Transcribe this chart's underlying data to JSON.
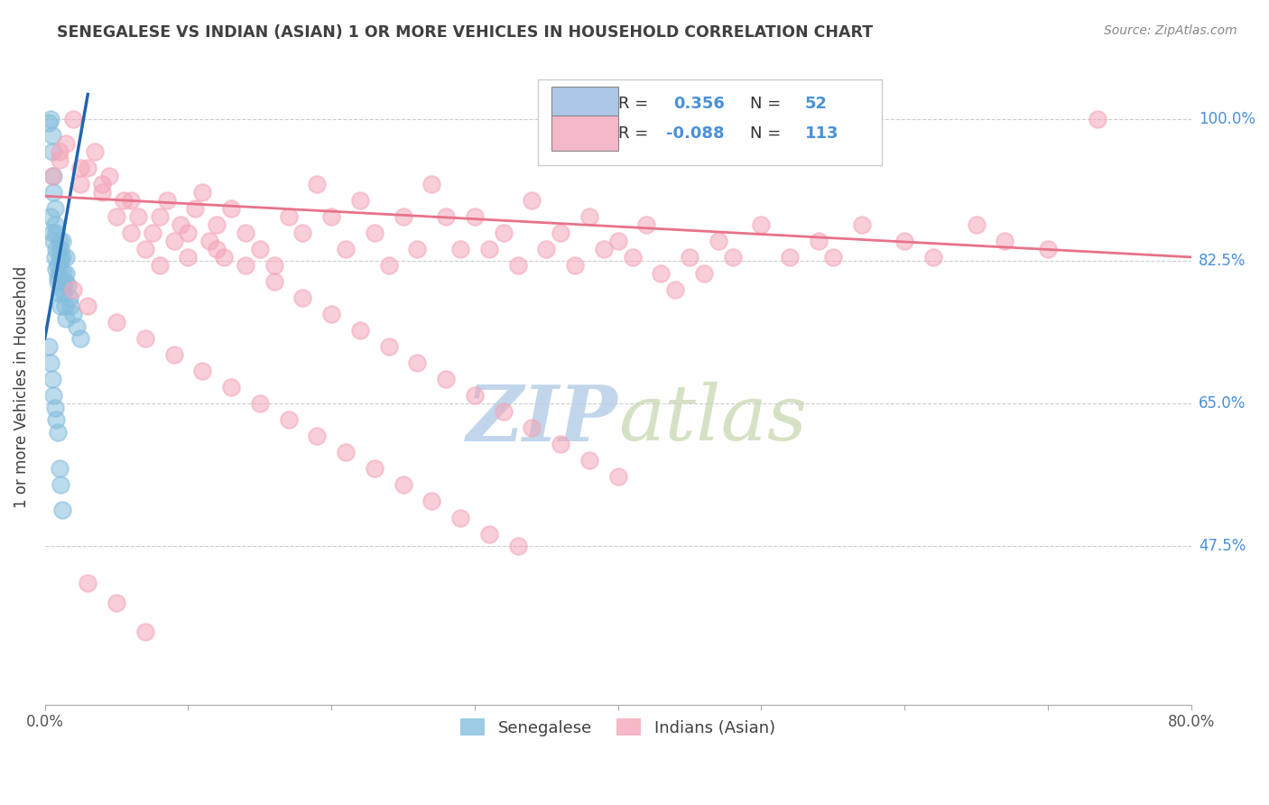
{
  "title": "SENEGALESE VS INDIAN (ASIAN) 1 OR MORE VEHICLES IN HOUSEHOLD CORRELATION CHART",
  "source_text": "Source: ZipAtlas.com",
  "ylabel": "1 or more Vehicles in Household",
  "xlim": [
    0.0,
    80.0
  ],
  "ylim": [
    28.0,
    106.0
  ],
  "xticks": [
    0.0,
    10.0,
    20.0,
    30.0,
    40.0,
    50.0,
    60.0,
    70.0,
    80.0
  ],
  "ytick_positions": [
    100.0,
    82.5,
    65.0,
    47.5
  ],
  "ytick_labels": [
    "100.0%",
    "82.5%",
    "65.0%",
    "47.5%"
  ],
  "r_senegalese": 0.356,
  "n_senegalese": 52,
  "r_indian": -0.088,
  "n_indian": 113,
  "blue_color": "#85bedd",
  "pink_color": "#f4a6b8",
  "blue_line_color": "#2166ac",
  "pink_line_color": "#e8728a",
  "watermark": "ZIPatlas",
  "watermark_color": "#c8daea",
  "background_color": "#ffffff",
  "grid_color": "#cccccc",
  "title_color": "#404040",
  "blue_scatter_x": [
    0.3,
    0.4,
    0.5,
    0.5,
    0.6,
    0.6,
    0.7,
    0.7,
    0.8,
    0.8,
    0.9,
    0.9,
    1.0,
    1.0,
    1.0,
    1.1,
    1.1,
    1.2,
    1.2,
    1.3,
    1.3,
    1.4,
    1.5,
    1.5,
    1.6,
    1.7,
    1.8,
    2.0,
    2.2,
    2.5,
    0.4,
    0.5,
    0.6,
    0.7,
    0.8,
    0.9,
    1.0,
    1.1,
    1.2,
    1.3,
    1.4,
    1.5,
    0.3,
    0.4,
    0.5,
    0.6,
    0.7,
    0.8,
    0.9,
    1.0,
    1.1,
    1.2
  ],
  "blue_scatter_y": [
    99.5,
    100.0,
    98.0,
    96.0,
    93.0,
    91.0,
    89.0,
    87.0,
    86.0,
    84.0,
    82.0,
    80.5,
    85.0,
    83.0,
    81.0,
    84.0,
    82.5,
    85.0,
    83.0,
    81.0,
    79.0,
    80.0,
    83.0,
    81.0,
    79.5,
    78.0,
    77.0,
    76.0,
    74.5,
    73.0,
    88.0,
    86.0,
    85.0,
    83.0,
    81.5,
    80.0,
    78.5,
    77.0,
    80.0,
    78.5,
    77.0,
    75.5,
    72.0,
    70.0,
    68.0,
    66.0,
    64.5,
    63.0,
    61.5,
    57.0,
    55.0,
    52.0
  ],
  "pink_scatter_x": [
    0.5,
    1.0,
    1.5,
    2.0,
    2.5,
    3.0,
    3.5,
    4.0,
    4.5,
    5.0,
    5.5,
    6.0,
    6.5,
    7.0,
    7.5,
    8.0,
    8.5,
    9.0,
    9.5,
    10.0,
    10.5,
    11.0,
    11.5,
    12.0,
    12.5,
    13.0,
    14.0,
    15.0,
    16.0,
    17.0,
    18.0,
    19.0,
    20.0,
    21.0,
    22.0,
    23.0,
    24.0,
    25.0,
    26.0,
    27.0,
    28.0,
    29.0,
    30.0,
    31.0,
    32.0,
    33.0,
    34.0,
    35.0,
    36.0,
    37.0,
    38.0,
    39.0,
    40.0,
    41.0,
    42.0,
    43.0,
    44.0,
    45.0,
    46.0,
    47.0,
    48.0,
    50.0,
    52.0,
    54.0,
    55.0,
    57.0,
    60.0,
    62.0,
    65.0,
    67.0,
    70.0,
    73.5,
    2.0,
    3.0,
    5.0,
    7.0,
    9.0,
    11.0,
    13.0,
    15.0,
    17.0,
    19.0,
    21.0,
    23.0,
    25.0,
    27.0,
    29.0,
    31.0,
    33.0,
    1.0,
    2.5,
    4.0,
    6.0,
    8.0,
    10.0,
    12.0,
    14.0,
    16.0,
    18.0,
    20.0,
    22.0,
    24.0,
    26.0,
    28.0,
    30.0,
    32.0,
    34.0,
    36.0,
    38.0,
    40.0,
    3.0,
    5.0,
    7.0
  ],
  "pink_scatter_y": [
    93.0,
    95.0,
    97.0,
    100.0,
    92.0,
    94.0,
    96.0,
    91.0,
    93.0,
    88.0,
    90.0,
    86.0,
    88.0,
    84.0,
    86.0,
    82.0,
    90.0,
    85.0,
    87.0,
    83.0,
    89.0,
    91.0,
    85.0,
    87.0,
    83.0,
    89.0,
    86.0,
    84.0,
    82.0,
    88.0,
    86.0,
    92.0,
    88.0,
    84.0,
    90.0,
    86.0,
    82.0,
    88.0,
    84.0,
    92.0,
    88.0,
    84.0,
    88.0,
    84.0,
    86.0,
    82.0,
    90.0,
    84.0,
    86.0,
    82.0,
    88.0,
    84.0,
    85.0,
    83.0,
    87.0,
    81.0,
    79.0,
    83.0,
    81.0,
    85.0,
    83.0,
    87.0,
    83.0,
    85.0,
    83.0,
    87.0,
    85.0,
    83.0,
    87.0,
    85.0,
    84.0,
    100.0,
    79.0,
    77.0,
    75.0,
    73.0,
    71.0,
    69.0,
    67.0,
    65.0,
    63.0,
    61.0,
    59.0,
    57.0,
    55.0,
    53.0,
    51.0,
    49.0,
    47.5,
    96.0,
    94.0,
    92.0,
    90.0,
    88.0,
    86.0,
    84.0,
    82.0,
    80.0,
    78.0,
    76.0,
    74.0,
    72.0,
    70.0,
    68.0,
    66.0,
    64.0,
    62.0,
    60.0,
    58.0,
    56.0,
    43.0,
    40.5,
    37.0
  ]
}
